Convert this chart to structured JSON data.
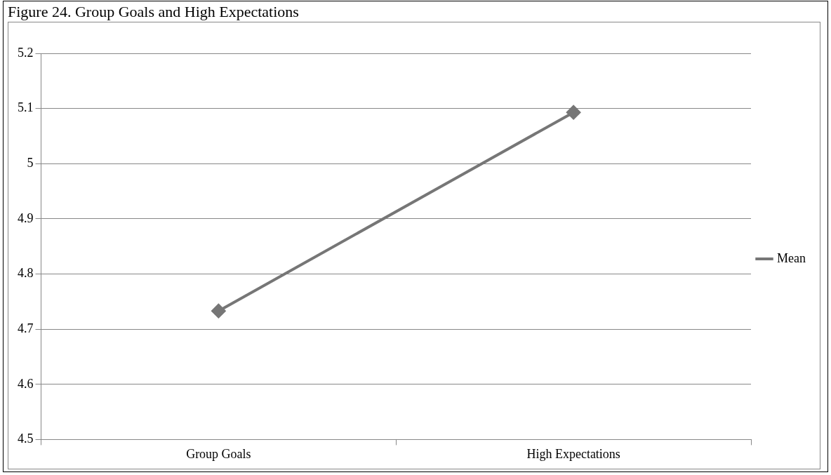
{
  "chart_data": {
    "type": "line",
    "title": "Figure 24. Group Goals and High Expectations",
    "categories": [
      "Group Goals",
      "High Expectations"
    ],
    "series": [
      {
        "name": "Mean",
        "color": "#767676",
        "values": [
          4.733,
          5.093
        ]
      }
    ],
    "ylim": [
      4.5,
      5.2
    ],
    "yticks": [
      4.5,
      4.6,
      4.7,
      4.8,
      4.9,
      5,
      5.1,
      5.2
    ],
    "grid": "y",
    "legend": "right",
    "marker": "diamond",
    "line_style": "solid"
  }
}
